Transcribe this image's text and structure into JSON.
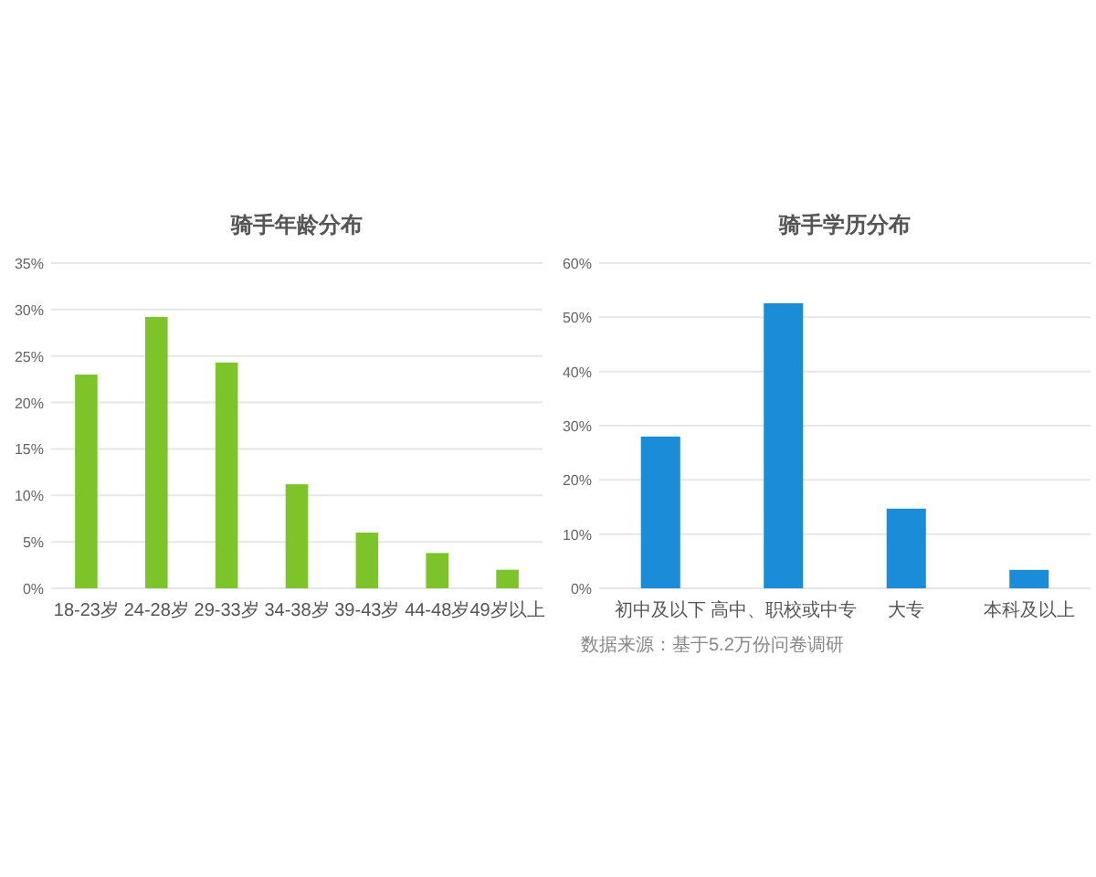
{
  "chart_data": [
    {
      "type": "bar",
      "title": "骑手年龄分布",
      "categories": [
        "18-23岁",
        "24-28岁",
        "29-33岁",
        "34-38岁",
        "39-43岁",
        "44-48岁",
        "49岁以上"
      ],
      "values": [
        23,
        29.2,
        24.3,
        11.2,
        6,
        3.8,
        2
      ],
      "color": "#7dc42a",
      "ylim": [
        0,
        35
      ],
      "yticks": [
        {
          "value": 0,
          "label": "0%"
        },
        {
          "value": 5,
          "label": "5%"
        },
        {
          "value": 10,
          "label": "10%"
        },
        {
          "value": 15,
          "label": "15%"
        },
        {
          "value": 20,
          "label": "20%"
        },
        {
          "value": 25,
          "label": "25%"
        },
        {
          "value": 30,
          "label": "30%"
        },
        {
          "value": 35,
          "label": "35%"
        }
      ],
      "grid": "y"
    },
    {
      "type": "bar",
      "title": "骑手学历分布",
      "categories": [
        "初中及以下",
        "高中、职校或中专",
        "大专",
        "本科及以上"
      ],
      "values": [
        28,
        52.6,
        14.7,
        3.4
      ],
      "color": "#1a8cd8",
      "ylim": [
        0,
        60
      ],
      "yticks": [
        {
          "value": 0,
          "label": "0%"
        },
        {
          "value": 10,
          "label": "10%"
        },
        {
          "value": 20,
          "label": "20%"
        },
        {
          "value": 30,
          "label": "30%"
        },
        {
          "value": 40,
          "label": "40%"
        },
        {
          "value": 50,
          "label": "50%"
        },
        {
          "value": 60,
          "label": "60%"
        }
      ],
      "grid": "y",
      "annotations": [
        "数据来源：基于5.2万份问卷调研"
      ]
    }
  ]
}
